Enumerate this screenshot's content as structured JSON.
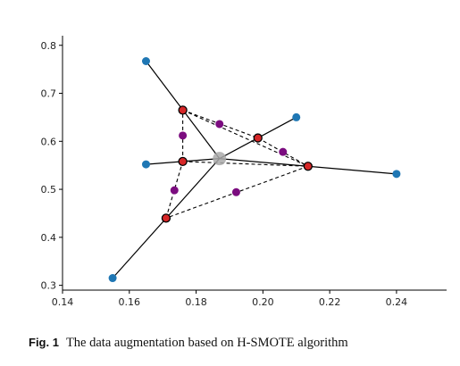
{
  "chart_data": {
    "type": "scatter",
    "title": "",
    "xlabel": "",
    "ylabel": "",
    "xlim": [
      0.14,
      0.255
    ],
    "ylim": [
      0.29,
      0.82
    ],
    "xticks": [
      0.14,
      0.16,
      0.18,
      0.2,
      0.22,
      0.24
    ],
    "yticks": [
      0.3,
      0.4,
      0.5,
      0.6,
      0.7,
      0.8
    ],
    "x_tick_labels": [
      "0.14",
      "0.16",
      "0.18",
      "0.20",
      "0.22",
      "0.24"
    ],
    "y_tick_labels": [
      "0.3",
      "0.4",
      "0.5",
      "0.6",
      "0.7",
      "0.8"
    ],
    "grid": false,
    "legend": "none",
    "center": {
      "x": 0.187,
      "y": 0.564,
      "color": "#a9a9a9"
    },
    "original_points": {
      "color": "#1f77b4",
      "points": [
        {
          "x": 0.165,
          "y": 0.767
        },
        {
          "x": 0.21,
          "y": 0.65
        },
        {
          "x": 0.165,
          "y": 0.552
        },
        {
          "x": 0.24,
          "y": 0.532
        },
        {
          "x": 0.155,
          "y": 0.315
        }
      ]
    },
    "first_synthetic": {
      "color": "#d62728",
      "edge_color": "#000000",
      "points": [
        {
          "x": 0.176,
          "y": 0.665
        },
        {
          "x": 0.1985,
          "y": 0.607
        },
        {
          "x": 0.176,
          "y": 0.558
        },
        {
          "x": 0.2135,
          "y": 0.548
        },
        {
          "x": 0.171,
          "y": 0.44
        }
      ]
    },
    "second_synthetic": {
      "color": "#7b0c7f",
      "points": [
        {
          "x": 0.187,
          "y": 0.636
        },
        {
          "x": 0.176,
          "y": 0.612
        },
        {
          "x": 0.206,
          "y": 0.578
        },
        {
          "x": 0.1735,
          "y": 0.498
        },
        {
          "x": 0.192,
          "y": 0.494
        }
      ]
    },
    "solid_lines": [
      {
        "from": [
          0.165,
          0.767
        ],
        "to": [
          0.187,
          0.564
        ]
      },
      {
        "from": [
          0.21,
          0.65
        ],
        "to": [
          0.187,
          0.564
        ]
      },
      {
        "from": [
          0.165,
          0.552
        ],
        "to": [
          0.187,
          0.564
        ]
      },
      {
        "from": [
          0.24,
          0.532
        ],
        "to": [
          0.187,
          0.564
        ]
      },
      {
        "from": [
          0.155,
          0.315
        ],
        "to": [
          0.187,
          0.564
        ]
      }
    ],
    "dashed_lines": [
      {
        "from": [
          0.176,
          0.665
        ],
        "to": [
          0.1985,
          0.607
        ]
      },
      {
        "from": [
          0.1985,
          0.607
        ],
        "to": [
          0.2135,
          0.548
        ]
      },
      {
        "from": [
          0.2135,
          0.548
        ],
        "to": [
          0.171,
          0.44
        ]
      },
      {
        "from": [
          0.171,
          0.44
        ],
        "to": [
          0.176,
          0.558
        ]
      },
      {
        "from": [
          0.176,
          0.558
        ],
        "to": [
          0.176,
          0.665
        ]
      },
      {
        "from": [
          0.176,
          0.665
        ],
        "to": [
          0.2135,
          0.548
        ]
      },
      {
        "from": [
          0.176,
          0.558
        ],
        "to": [
          0.2135,
          0.548
        ]
      }
    ]
  },
  "caption": {
    "label": "Fig. 1",
    "text": "The data augmentation based on H-SMOTE algorithm"
  }
}
